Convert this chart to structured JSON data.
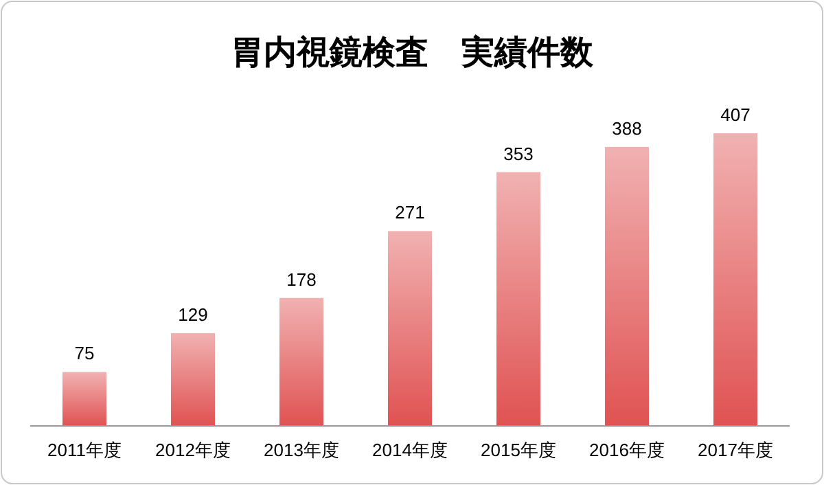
{
  "chart_data": {
    "type": "bar",
    "title": "胃内視鏡検査　実績件数",
    "categories": [
      "2011年度",
      "2012年度",
      "2013年度",
      "2014年度",
      "2015年度",
      "2016年度",
      "2017年度"
    ],
    "values": [
      75,
      129,
      178,
      271,
      353,
      388,
      407
    ],
    "color": "#e05252",
    "data_labels": true
  }
}
